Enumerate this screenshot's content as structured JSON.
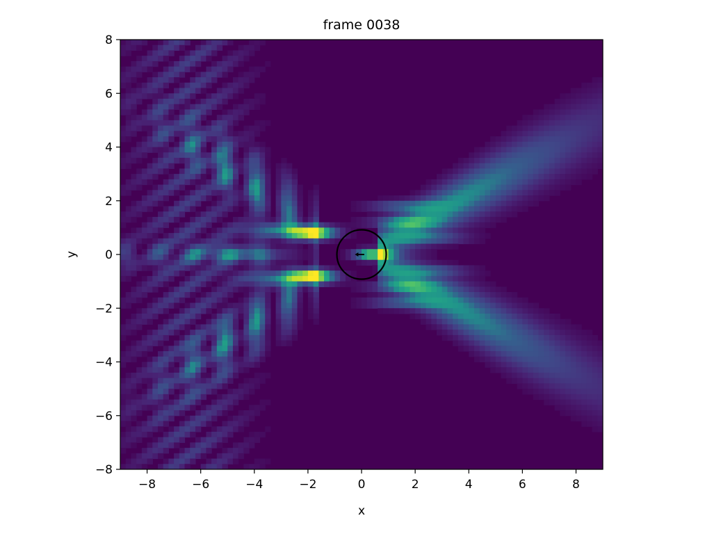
{
  "chart_data": {
    "type": "heatmap",
    "title": "frame 0038",
    "xlabel": "x",
    "ylabel": "y",
    "xlim": [
      -9,
      9
    ],
    "ylim": [
      -8,
      8
    ],
    "xticks": [
      -8,
      -6,
      -4,
      -2,
      0,
      2,
      4,
      6,
      8
    ],
    "yticks": [
      -8,
      -6,
      -4,
      -2,
      0,
      2,
      4,
      6,
      8
    ],
    "xtick_labels": [
      "−8",
      "−6",
      "−4",
      "−2",
      "0",
      "2",
      "4",
      "6",
      "8"
    ],
    "ytick_labels": [
      "−8",
      "−6",
      "−4",
      "−2",
      "0",
      "2",
      "4",
      "6",
      "8"
    ],
    "colormap": "viridis",
    "grid": false,
    "intensity_peaks": [
      {
        "x": -1.8,
        "y": 0.8,
        "value": 1.0
      },
      {
        "x": -1.8,
        "y": -0.8,
        "value": 1.0
      },
      {
        "x": 0.4,
        "y": 0.0,
        "value": 0.95
      }
    ],
    "circle": {
      "center": [
        0,
        0
      ],
      "radius": 0.92,
      "color": "#000000"
    },
    "arrow": {
      "from": [
        0.1,
        0.0
      ],
      "to": [
        -0.25,
        0.0
      ],
      "color": "#000000"
    },
    "colors": {
      "background": "#440154",
      "mid": "#21918c",
      "high": "#fde725",
      "axes": "#000000"
    }
  }
}
